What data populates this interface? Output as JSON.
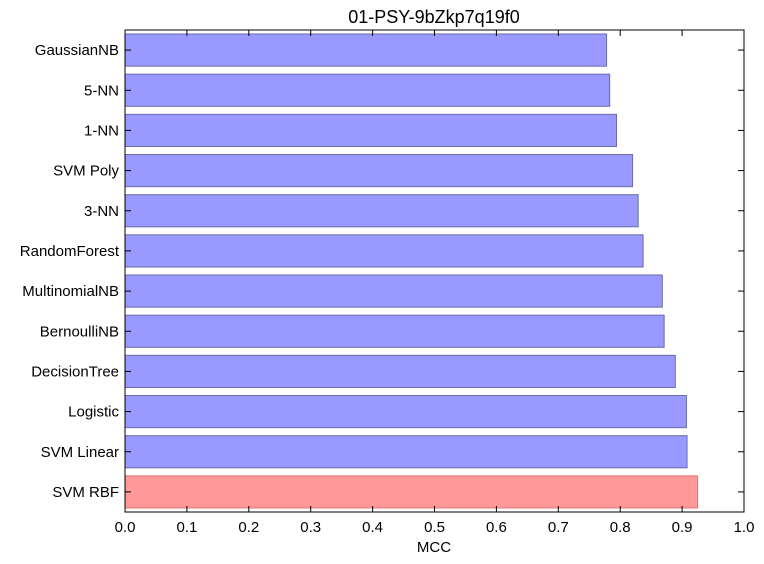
{
  "chart_data": {
    "type": "bar",
    "orientation": "horizontal",
    "title": "01-PSY-9bZkp7q19f0",
    "xlabel": "MCC",
    "ylabel": "",
    "xlim": [
      0,
      1.0
    ],
    "xticks": [
      "0.0",
      "0.1",
      "0.2",
      "0.3",
      "0.4",
      "0.5",
      "0.6",
      "0.7",
      "0.8",
      "0.9",
      "1.0"
    ],
    "grid": false,
    "categories": [
      "GaussianNB",
      "5-NN",
      "1-NN",
      "SVM Poly",
      "3-NN",
      "RandomForest",
      "MultinomialNB",
      "BernoulliNB",
      "DecisionTree",
      "Logistic",
      "SVM Linear",
      "SVM RBF"
    ],
    "values": [
      0.778,
      0.783,
      0.794,
      0.82,
      0.829,
      0.837,
      0.868,
      0.871,
      0.889,
      0.907,
      0.908,
      0.925
    ],
    "highlight_index": 11,
    "colors": {
      "bar": "#9999ff",
      "bar_edge": "#6a6aa8",
      "highlight": "#ff9999",
      "highlight_edge": "#e57373",
      "axis": "#000000"
    }
  }
}
